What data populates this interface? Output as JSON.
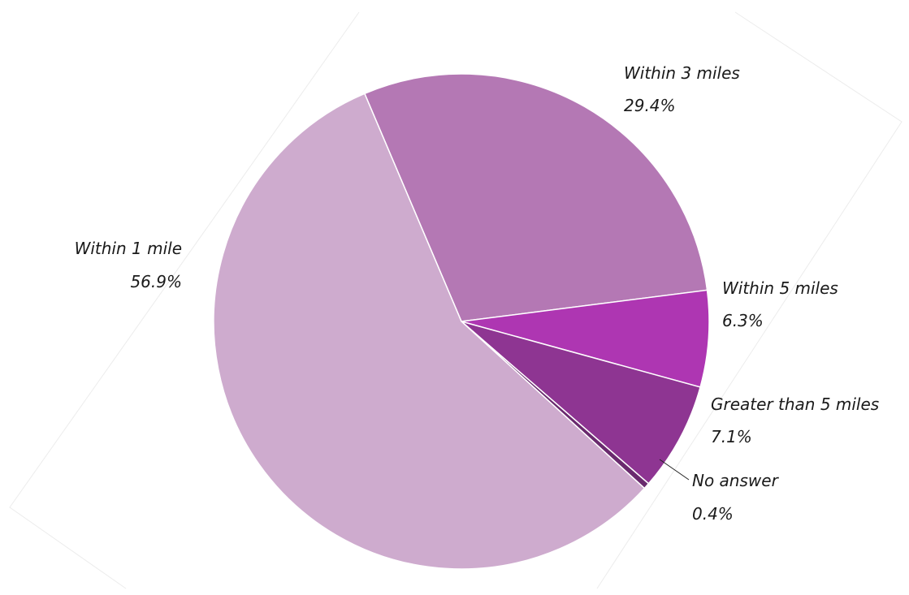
{
  "chart_data": {
    "type": "pie",
    "title": "",
    "slices": [
      {
        "label": "Within 3 miles",
        "value": 29.4,
        "display": "29.4%",
        "color": "#b478b4"
      },
      {
        "label": "Within 5 miles",
        "value": 6.3,
        "display": "6.3%",
        "color": "#ae36b2"
      },
      {
        "label": "Greater than 5 miles",
        "value": 7.1,
        "display": "7.1%",
        "color": "#8e3592"
      },
      {
        "label": "No answer",
        "value": 0.4,
        "display": "0.4%",
        "color": "#6a2a6e"
      },
      {
        "label": "Within 1 mile",
        "value": 56.9,
        "display": "56.9%",
        "color": "#ceabce"
      }
    ],
    "legend": "none",
    "labels": "outside"
  }
}
